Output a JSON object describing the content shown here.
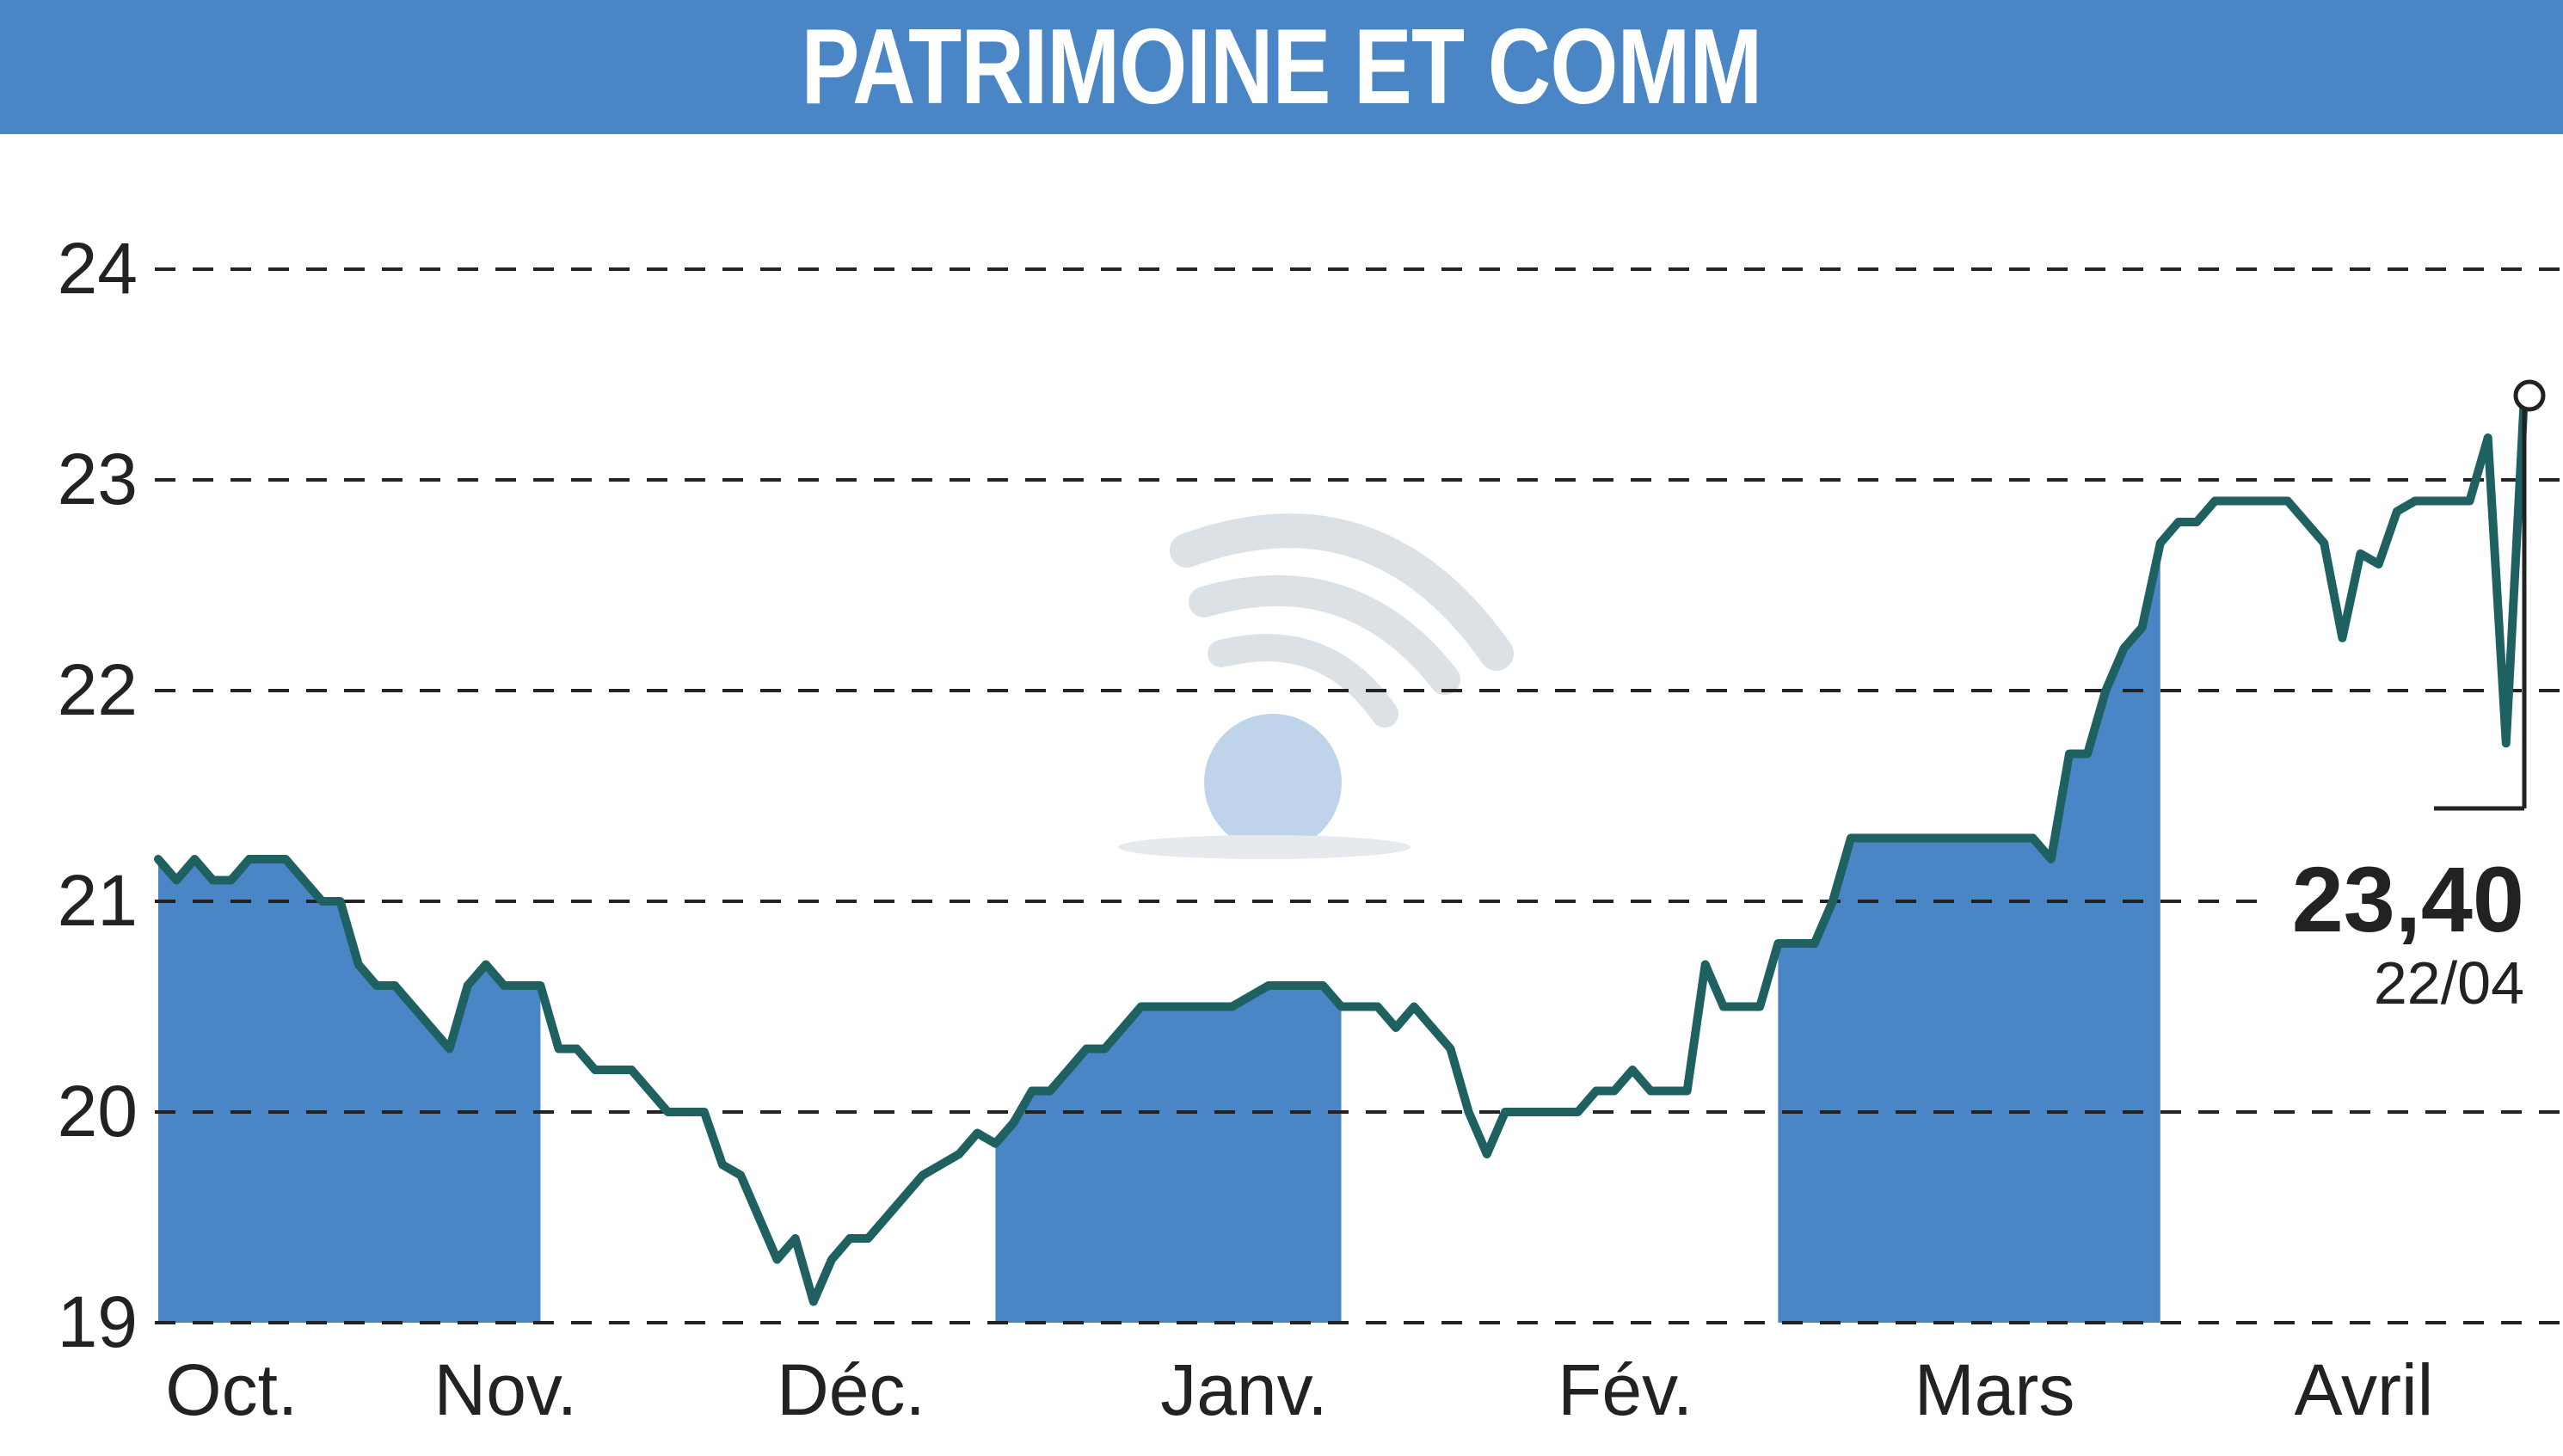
{
  "title": "PATRIMOINE ET COMM",
  "colors": {
    "title_bg": "#4a86c5",
    "fill": "#4a86c5",
    "line": "#1f6061",
    "grid": "#222222"
  },
  "watermark": "wifi-logo-icon",
  "last_value": {
    "value": "23,40",
    "date": "22/04"
  },
  "chart_data": {
    "type": "line",
    "title": "PATRIMOINE ET COMM",
    "ylim": [
      19,
      24
    ],
    "yticks": [
      19,
      20,
      21,
      22,
      23,
      24
    ],
    "grid": true,
    "months": [
      "Oct.",
      "Nov.",
      "Déc.",
      "Janv.",
      "Févr.",
      "Mars",
      "Avril"
    ],
    "month_labels": [
      "Oct.",
      "Nov.",
      "Déc.",
      "Janv.",
      "Fév.",
      "Mars",
      "Avril"
    ],
    "shaded_months": [
      "Oct.",
      "Déc.",
      "Févr.",
      "Avril"
    ],
    "x_range": [
      0,
      139
    ],
    "month_starts": [
      0,
      22,
      46,
      66,
      89,
      111,
      132
    ],
    "x_label_pos": [
      5,
      28,
      57,
      90,
      122,
      153,
      184
    ],
    "series": [
      {
        "values": [
          21.2,
          21.1,
          21.2,
          21.1,
          21.1,
          21.2,
          21.2,
          21.2,
          21.1,
          21.0,
          21.0,
          20.7,
          20.6,
          20.6,
          20.5,
          20.4,
          20.3,
          20.6,
          20.7,
          20.6,
          20.6,
          20.6,
          20.3,
          20.3,
          20.2,
          20.2,
          20.2,
          20.1,
          20.0,
          20.0,
          20.0,
          19.75,
          19.7,
          19.5,
          19.3,
          19.4,
          19.1,
          19.3,
          19.4,
          19.4,
          19.5,
          19.6,
          19.7,
          19.75,
          19.8,
          19.9,
          19.85,
          19.95,
          20.1,
          20.1,
          20.2,
          20.3,
          20.3,
          20.4,
          20.5,
          20.5,
          20.5,
          20.5,
          20.5,
          20.5,
          20.55,
          20.6,
          20.6,
          20.6,
          20.6,
          20.5,
          20.5,
          20.5,
          20.4,
          20.5,
          20.4,
          20.3,
          20.0,
          19.8,
          20.0,
          20.0,
          20.0,
          20.0,
          20.0,
          20.1,
          20.1,
          20.2,
          20.1,
          20.1,
          20.1,
          20.7,
          20.5,
          20.5,
          20.5,
          20.8,
          20.8,
          20.8,
          21.0,
          21.3,
          21.3,
          21.3,
          21.3,
          21.3,
          21.3,
          21.3,
          21.3,
          21.3,
          21.3,
          21.3,
          21.2,
          21.7,
          21.7,
          22.0,
          22.2,
          22.3,
          22.7,
          22.8,
          22.8,
          22.9,
          22.9,
          22.9,
          22.9,
          22.9,
          22.8,
          22.7,
          22.25,
          22.65,
          22.6,
          22.85,
          22.9,
          22.9,
          22.9,
          22.9,
          23.2,
          21.75,
          23.4
        ]
      }
    ],
    "last_value": 23.4,
    "last_date": "22/04"
  }
}
